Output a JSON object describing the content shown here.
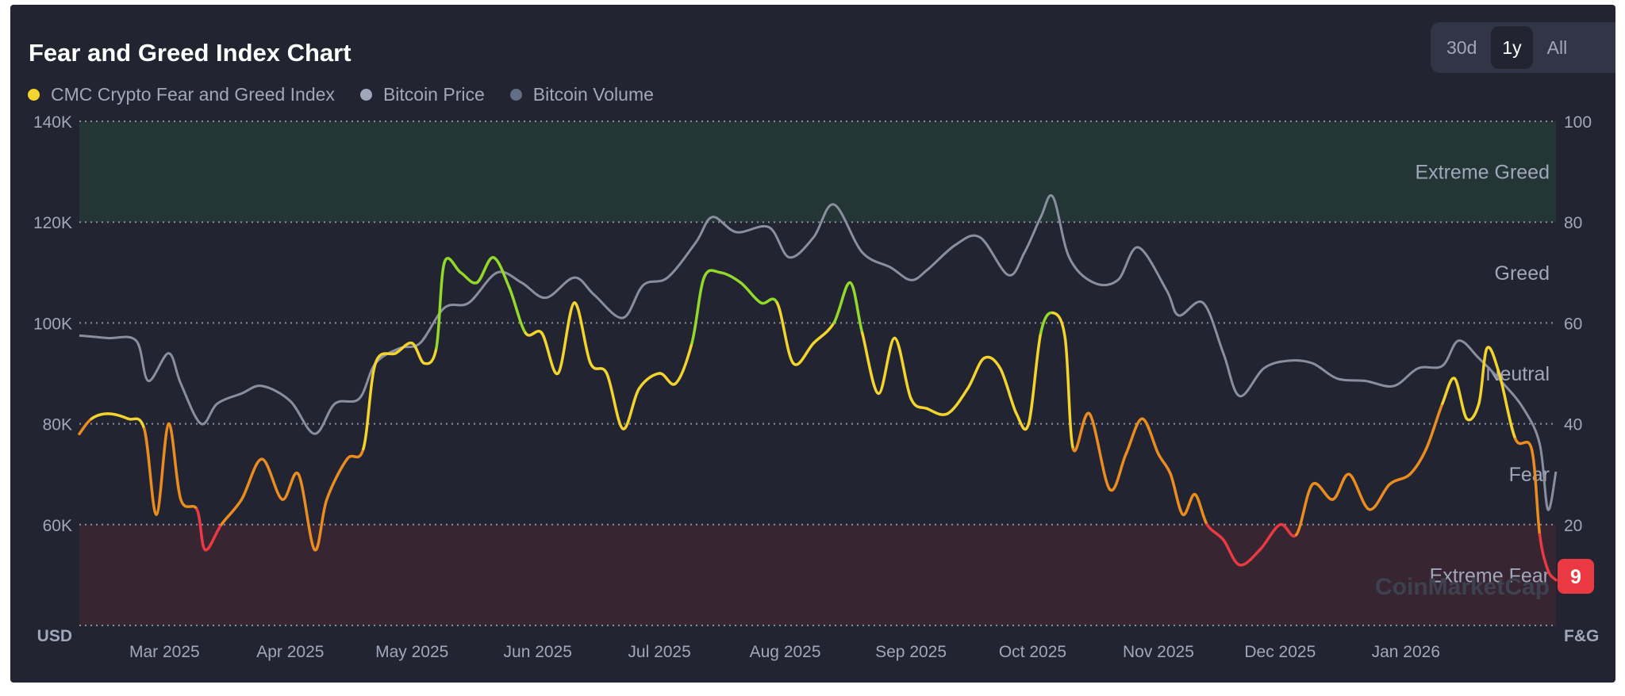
{
  "header": {
    "title": "Fear and Greed Index Chart",
    "ranges": [
      "30d",
      "1y",
      "All"
    ],
    "active_range": "1y"
  },
  "legend": [
    {
      "label": "CMC Crypto Fear and Greed Index",
      "color": "#f3d42f"
    },
    {
      "label": "Bitcoin Price",
      "color": "#a1a7bb"
    },
    {
      "label": "Bitcoin Volume",
      "color": "#616e85"
    }
  ],
  "watermark": "CoinMarketCap",
  "chart_data": {
    "type": "line",
    "left_axis": {
      "label": "USD",
      "ticks": [
        "140K",
        "120K",
        "100K",
        "80K",
        "60K"
      ],
      "range": [
        40000,
        140000
      ]
    },
    "right_axis": {
      "label": "F&G",
      "ticks": [
        "100",
        "80",
        "60",
        "40",
        "20"
      ],
      "range": [
        0,
        100
      ]
    },
    "x_ticks": [
      {
        "label": "Mar 2025",
        "date": "2025-03-01"
      },
      {
        "label": "Apr 2025",
        "date": "2025-04-01"
      },
      {
        "label": "May 2025",
        "date": "2025-05-01"
      },
      {
        "label": "Jun 2025",
        "date": "2025-06-01"
      },
      {
        "label": "Jul 2025",
        "date": "2025-07-01"
      },
      {
        "label": "Aug 2025",
        "date": "2025-08-01"
      },
      {
        "label": "Sep 2025",
        "date": "2025-09-01"
      },
      {
        "label": "Oct 2025",
        "date": "2025-10-01"
      },
      {
        "label": "Nov 2025",
        "date": "2025-11-01"
      },
      {
        "label": "Dec 2025",
        "date": "2025-12-01"
      },
      {
        "label": "Jan 2026",
        "date": "2026-01-01"
      }
    ],
    "x_range": [
      "2025-02-08",
      "2026-02-07"
    ],
    "zones": [
      {
        "label": "Extreme Greed",
        "from": 80,
        "to": 100,
        "shaded": true,
        "color": "#243536"
      },
      {
        "label": "Greed",
        "from": 60,
        "to": 80,
        "shaded": false
      },
      {
        "label": "Neutral",
        "from": 40,
        "to": 60,
        "shaded": false
      },
      {
        "label": "Fear",
        "from": 20,
        "to": 40,
        "shaded": false
      },
      {
        "label": "Extreme Fear",
        "from": 0,
        "to": 20,
        "shaded": true,
        "color": "#372631"
      }
    ],
    "current_value": "9",
    "series": [
      {
        "name": "Bitcoin Price",
        "axis": "left",
        "color": "#8a8f9f",
        "points": [
          [
            "2025-02-08",
            97500
          ],
          [
            "2025-02-15",
            97000
          ],
          [
            "2025-02-22",
            96500
          ],
          [
            "2025-02-25",
            88500
          ],
          [
            "2025-03-02",
            94000
          ],
          [
            "2025-03-05",
            88000
          ],
          [
            "2025-03-10",
            80000
          ],
          [
            "2025-03-14",
            84000
          ],
          [
            "2025-03-20",
            86000
          ],
          [
            "2025-03-25",
            87500
          ],
          [
            "2025-04-01",
            84500
          ],
          [
            "2025-04-07",
            78000
          ],
          [
            "2025-04-12",
            84000
          ],
          [
            "2025-04-18",
            85000
          ],
          [
            "2025-04-22",
            92000
          ],
          [
            "2025-04-28",
            95000
          ],
          [
            "2025-05-03",
            96000
          ],
          [
            "2025-05-09",
            103000
          ],
          [
            "2025-05-15",
            104000
          ],
          [
            "2025-05-22",
            110000
          ],
          [
            "2025-05-28",
            108000
          ],
          [
            "2025-06-03",
            105000
          ],
          [
            "2025-06-10",
            109000
          ],
          [
            "2025-06-15",
            105500
          ],
          [
            "2025-06-22",
            101000
          ],
          [
            "2025-06-27",
            107500
          ],
          [
            "2025-07-03",
            109000
          ],
          [
            "2025-07-10",
            116000
          ],
          [
            "2025-07-14",
            121000
          ],
          [
            "2025-07-20",
            118000
          ],
          [
            "2025-07-28",
            119000
          ],
          [
            "2025-08-02",
            113000
          ],
          [
            "2025-08-08",
            117000
          ],
          [
            "2025-08-13",
            123500
          ],
          [
            "2025-08-20",
            114000
          ],
          [
            "2025-08-27",
            111000
          ],
          [
            "2025-09-01",
            108500
          ],
          [
            "2025-09-05",
            110500
          ],
          [
            "2025-09-12",
            115500
          ],
          [
            "2025-09-18",
            117000
          ],
          [
            "2025-09-25",
            109500
          ],
          [
            "2025-09-29",
            114000
          ],
          [
            "2025-10-03",
            121000
          ],
          [
            "2025-10-06",
            125000
          ],
          [
            "2025-10-10",
            113000
          ],
          [
            "2025-10-16",
            108000
          ],
          [
            "2025-10-22",
            108500
          ],
          [
            "2025-10-27",
            115000
          ],
          [
            "2025-11-03",
            106500
          ],
          [
            "2025-11-06",
            101500
          ],
          [
            "2025-11-12",
            104000
          ],
          [
            "2025-11-17",
            94000
          ],
          [
            "2025-11-21",
            85500
          ],
          [
            "2025-11-27",
            91000
          ],
          [
            "2025-12-03",
            92500
          ],
          [
            "2025-12-09",
            92000
          ],
          [
            "2025-12-15",
            89000
          ],
          [
            "2025-12-22",
            88500
          ],
          [
            "2025-12-29",
            87500
          ],
          [
            "2026-01-04",
            91000
          ],
          [
            "2026-01-10",
            91500
          ],
          [
            "2026-01-14",
            96500
          ],
          [
            "2026-01-19",
            93000
          ],
          [
            "2026-01-25",
            88000
          ],
          [
            "2026-01-30",
            83000
          ],
          [
            "2026-02-03",
            76000
          ],
          [
            "2026-02-05",
            63000
          ],
          [
            "2026-02-07",
            70500
          ]
        ]
      },
      {
        "name": "CMC Crypto Fear and Greed Index",
        "axis": "right",
        "points": [
          [
            "2025-02-08",
            38
          ],
          [
            "2025-02-11",
            41
          ],
          [
            "2025-02-15",
            42
          ],
          [
            "2025-02-20",
            41
          ],
          [
            "2025-02-24",
            39
          ],
          [
            "2025-02-27",
            22
          ],
          [
            "2025-03-02",
            40
          ],
          [
            "2025-03-05",
            25
          ],
          [
            "2025-03-09",
            23
          ],
          [
            "2025-03-11",
            15
          ],
          [
            "2025-03-15",
            20
          ],
          [
            "2025-03-20",
            25
          ],
          [
            "2025-03-25",
            33
          ],
          [
            "2025-03-30",
            25
          ],
          [
            "2025-04-03",
            30
          ],
          [
            "2025-04-07",
            15
          ],
          [
            "2025-04-10",
            25
          ],
          [
            "2025-04-15",
            33
          ],
          [
            "2025-04-19",
            35
          ],
          [
            "2025-04-22",
            52
          ],
          [
            "2025-04-27",
            54
          ],
          [
            "2025-05-01",
            56
          ],
          [
            "2025-05-04",
            52
          ],
          [
            "2025-05-07",
            55
          ],
          [
            "2025-05-09",
            72
          ],
          [
            "2025-05-13",
            70
          ],
          [
            "2025-05-17",
            68
          ],
          [
            "2025-05-21",
            73
          ],
          [
            "2025-05-25",
            67
          ],
          [
            "2025-05-29",
            58
          ],
          [
            "2025-06-02",
            58
          ],
          [
            "2025-06-06",
            50
          ],
          [
            "2025-06-10",
            64
          ],
          [
            "2025-06-14",
            52
          ],
          [
            "2025-06-18",
            50
          ],
          [
            "2025-06-22",
            39
          ],
          [
            "2025-06-26",
            47
          ],
          [
            "2025-07-01",
            50
          ],
          [
            "2025-07-05",
            48
          ],
          [
            "2025-07-09",
            56
          ],
          [
            "2025-07-12",
            69
          ],
          [
            "2025-07-16",
            70
          ],
          [
            "2025-07-21",
            68
          ],
          [
            "2025-07-26",
            64
          ],
          [
            "2025-07-30",
            64
          ],
          [
            "2025-08-03",
            52
          ],
          [
            "2025-08-08",
            56
          ],
          [
            "2025-08-13",
            60
          ],
          [
            "2025-08-17",
            68
          ],
          [
            "2025-08-20",
            58
          ],
          [
            "2025-08-24",
            46
          ],
          [
            "2025-08-28",
            57
          ],
          [
            "2025-09-01",
            45
          ],
          [
            "2025-09-05",
            43
          ],
          [
            "2025-09-10",
            42
          ],
          [
            "2025-09-15",
            47
          ],
          [
            "2025-09-19",
            53
          ],
          [
            "2025-09-23",
            51
          ],
          [
            "2025-09-27",
            42
          ],
          [
            "2025-09-30",
            40
          ],
          [
            "2025-10-03",
            58
          ],
          [
            "2025-10-06",
            62
          ],
          [
            "2025-10-09",
            57
          ],
          [
            "2025-10-11",
            35
          ],
          [
            "2025-10-15",
            42
          ],
          [
            "2025-10-20",
            27
          ],
          [
            "2025-10-24",
            34
          ],
          [
            "2025-10-28",
            41
          ],
          [
            "2025-11-01",
            34
          ],
          [
            "2025-11-04",
            30
          ],
          [
            "2025-11-07",
            22
          ],
          [
            "2025-11-10",
            26
          ],
          [
            "2025-11-13",
            20
          ],
          [
            "2025-11-17",
            17
          ],
          [
            "2025-11-21",
            12
          ],
          [
            "2025-11-26",
            15
          ],
          [
            "2025-12-01",
            20
          ],
          [
            "2025-12-05",
            18
          ],
          [
            "2025-12-09",
            28
          ],
          [
            "2025-12-14",
            25
          ],
          [
            "2025-12-18",
            30
          ],
          [
            "2025-12-23",
            23
          ],
          [
            "2025-12-28",
            28
          ],
          [
            "2026-01-02",
            30
          ],
          [
            "2026-01-06",
            35
          ],
          [
            "2026-01-10",
            44
          ],
          [
            "2026-01-13",
            49
          ],
          [
            "2026-01-16",
            41
          ],
          [
            "2026-01-19",
            44
          ],
          [
            "2026-01-21",
            55
          ],
          [
            "2026-01-24",
            50
          ],
          [
            "2026-01-28",
            37
          ],
          [
            "2026-02-01",
            35
          ],
          [
            "2026-02-03",
            18
          ],
          [
            "2026-02-05",
            11
          ],
          [
            "2026-02-07",
            9
          ]
        ]
      }
    ]
  }
}
